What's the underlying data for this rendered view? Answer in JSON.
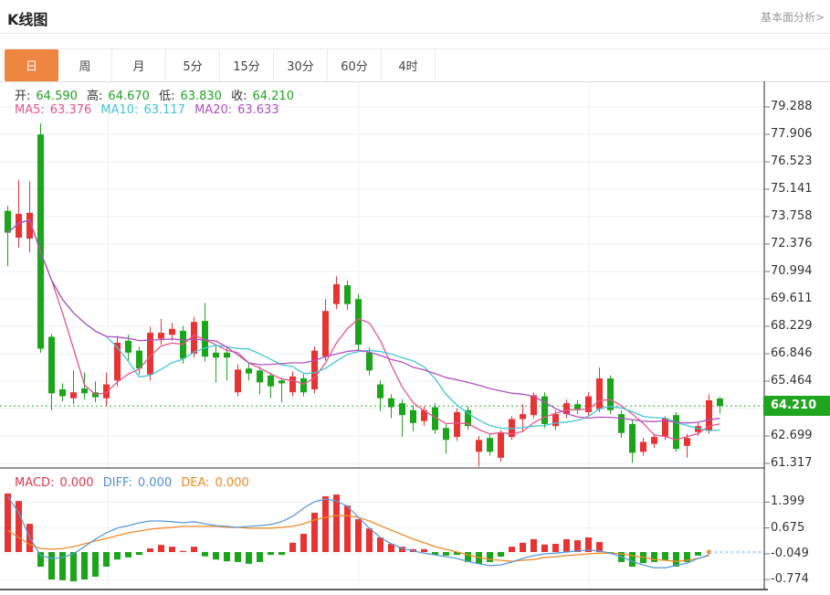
{
  "header": {
    "title": "K线图",
    "link": "基本面分析>"
  },
  "tabs": [
    {
      "label": "日",
      "selected": true
    },
    {
      "label": "周",
      "selected": false
    },
    {
      "label": "月",
      "selected": false
    },
    {
      "label": "5分",
      "selected": false
    },
    {
      "label": "15分",
      "selected": false
    },
    {
      "label": "30分",
      "selected": false
    },
    {
      "label": "60分",
      "selected": false
    },
    {
      "label": "4时",
      "selected": false
    }
  ],
  "legend": {
    "open_label": "开:",
    "open": "64.590",
    "high_label": "高:",
    "high": "64.670",
    "low_label": "低:",
    "low": "63.830",
    "close_label": "收:",
    "close": "64.210",
    "ma5_label": "MA5:",
    "ma5": "63.376",
    "ma10_label": "MA10:",
    "ma10": "63.117",
    "ma20_label": "MA20:",
    "ma20": "63.633",
    "macd_label": "MACD:",
    "macd": "0.000",
    "diff_label": "DIFF:",
    "diff": "0.000",
    "dea_label": "DEA:",
    "dea": "0.000"
  },
  "colors": {
    "up_candle": "#e83333",
    "down_candle": "#1ba51b",
    "badge_green": "#1fa51f",
    "dotted_price_line": "#2db52d",
    "ma5": "#e8558c",
    "ma10": "#45c5d8",
    "ma20": "#b052c0",
    "diff_line": "#5b9bd8",
    "dea_line": "#f08a28",
    "dashed_tail": "#a9c9e9",
    "macd_label": "#e0394f",
    "diff_label": "#4f8fd8",
    "dea_label": "#f08a1e",
    "tab_active": "#ee8540",
    "grid": "#eef1f4",
    "axis": "#2a2a2a",
    "ohlc_value": "#21a321"
  },
  "chart_data": {
    "type": "candlestick",
    "title": "K线图",
    "legend_position": "top-left",
    "grid": true,
    "price_axis_ticks": [
      79.288,
      77.906,
      76.523,
      75.141,
      73.758,
      72.376,
      70.994,
      69.611,
      68.229,
      66.846,
      65.464,
      62.699,
      61.317
    ],
    "current_price": 64.21,
    "price_axis_range": [
      61.08,
      80.58
    ],
    "macd_axis_ticks": [
      1.399,
      0.675,
      -0.049,
      -0.774
    ],
    "ma_periods": [
      5,
      10,
      20
    ],
    "candles": [
      [
        74.05,
        74.3,
        71.25,
        72.95
      ],
      [
        72.7,
        75.6,
        72.2,
        73.9
      ],
      [
        72.65,
        75.55,
        71.95,
        73.95
      ],
      [
        77.9,
        78.45,
        66.9,
        67.1
      ],
      [
        67.7,
        67.85,
        64.0,
        64.85
      ],
      [
        65.05,
        65.35,
        64.45,
        64.7
      ],
      [
        64.6,
        66.0,
        64.3,
        64.9
      ],
      [
        65.1,
        65.9,
        64.55,
        64.85
      ],
      [
        64.9,
        65.45,
        64.4,
        64.65
      ],
      [
        64.6,
        65.9,
        64.2,
        65.3
      ],
      [
        65.5,
        67.75,
        65.2,
        67.4
      ],
      [
        67.5,
        67.8,
        66.5,
        66.9
      ],
      [
        67.0,
        67.2,
        65.8,
        66.1
      ],
      [
        65.8,
        68.2,
        65.5,
        67.9
      ],
      [
        67.6,
        68.6,
        67.3,
        67.9
      ],
      [
        67.8,
        68.4,
        67.5,
        68.1
      ],
      [
        68.0,
        68.25,
        66.35,
        66.6
      ],
      [
        66.85,
        68.7,
        66.65,
        68.45
      ],
      [
        68.5,
        69.4,
        66.45,
        66.7
      ],
      [
        66.9,
        67.25,
        65.4,
        66.65
      ],
      [
        66.9,
        67.2,
        65.5,
        66.65
      ],
      [
        64.9,
        66.3,
        64.7,
        66.05
      ],
      [
        66.1,
        66.4,
        65.5,
        65.85
      ],
      [
        66.0,
        66.2,
        64.8,
        65.4
      ],
      [
        65.75,
        65.9,
        64.6,
        65.2
      ],
      [
        65.5,
        65.65,
        64.4,
        65.35
      ],
      [
        64.9,
        65.95,
        64.7,
        65.7
      ],
      [
        65.6,
        65.8,
        64.7,
        64.9
      ],
      [
        65.05,
        67.2,
        64.85,
        67.0
      ],
      [
        66.7,
        69.6,
        66.5,
        69.0
      ],
      [
        69.35,
        70.75,
        69.1,
        70.35
      ],
      [
        70.3,
        70.55,
        69.05,
        69.35
      ],
      [
        69.6,
        69.85,
        67.05,
        67.3
      ],
      [
        66.9,
        67.15,
        65.75,
        66.0
      ],
      [
        65.3,
        65.5,
        63.95,
        64.6
      ],
      [
        64.6,
        64.8,
        63.6,
        64.15
      ],
      [
        64.35,
        64.55,
        62.65,
        63.75
      ],
      [
        64.0,
        64.25,
        62.95,
        63.35
      ],
      [
        63.45,
        64.2,
        63.2,
        64.0
      ],
      [
        64.15,
        64.35,
        62.8,
        63.0
      ],
      [
        63.1,
        63.35,
        61.8,
        62.5
      ],
      [
        62.65,
        64.1,
        62.45,
        63.9
      ],
      [
        64.0,
        64.2,
        63.0,
        63.2
      ],
      [
        61.9,
        62.7,
        61.15,
        62.5
      ],
      [
        62.6,
        62.8,
        61.7,
        61.9
      ],
      [
        61.6,
        63.0,
        61.4,
        62.85
      ],
      [
        62.65,
        63.7,
        62.5,
        63.55
      ],
      [
        63.55,
        64.3,
        62.9,
        63.8
      ],
      [
        63.75,
        64.9,
        63.6,
        64.75
      ],
      [
        64.7,
        64.9,
        63.1,
        63.3
      ],
      [
        63.2,
        64.0,
        63.0,
        63.8
      ],
      [
        63.8,
        64.55,
        63.6,
        64.35
      ],
      [
        64.3,
        64.5,
        63.8,
        64.0
      ],
      [
        63.9,
        64.9,
        63.7,
        64.7
      ],
      [
        64.05,
        66.15,
        63.9,
        65.6
      ],
      [
        65.6,
        65.75,
        63.8,
        64.0
      ],
      [
        63.8,
        64.0,
        62.6,
        62.85
      ],
      [
        63.3,
        63.5,
        61.35,
        61.85
      ],
      [
        61.9,
        62.6,
        61.7,
        62.4
      ],
      [
        62.3,
        62.8,
        62.1,
        62.65
      ],
      [
        62.65,
        63.7,
        62.5,
        63.6
      ],
      [
        63.75,
        63.9,
        61.9,
        62.05
      ],
      [
        62.2,
        62.8,
        61.6,
        62.6
      ],
      [
        62.9,
        63.4,
        62.7,
        63.2
      ],
      [
        62.95,
        64.8,
        62.8,
        64.5
      ],
      [
        64.59,
        64.67,
        63.83,
        64.21
      ]
    ],
    "macd_hist": [
      1.64,
      1.43,
      0.79,
      -0.41,
      -0.77,
      -0.79,
      -0.82,
      -0.77,
      -0.69,
      -0.41,
      -0.21,
      -0.15,
      -0.08,
      0.1,
      0.2,
      0.15,
      0.03,
      0.15,
      -0.12,
      -0.21,
      -0.26,
      -0.28,
      -0.33,
      -0.28,
      -0.08,
      -0.08,
      0.26,
      0.51,
      1.1,
      1.56,
      1.61,
      1.3,
      0.92,
      0.66,
      0.41,
      0.23,
      0.15,
      0.08,
      0.08,
      -0.08,
      -0.1,
      -0.08,
      -0.28,
      -0.33,
      -0.28,
      -0.13,
      0.15,
      0.26,
      0.36,
      0.21,
      0.23,
      0.36,
      0.33,
      0.41,
      0.28,
      -0.05,
      -0.28,
      -0.41,
      -0.31,
      -0.28,
      -0.23,
      -0.41,
      -0.28,
      -0.1,
      0.0,
      0.0
    ],
    "diff_line": [
      1.56,
      1.1,
      0.41,
      -0.1,
      -0.18,
      -0.15,
      -0.05,
      0.15,
      0.36,
      0.54,
      0.67,
      0.74,
      0.82,
      0.87,
      0.87,
      0.85,
      0.82,
      0.85,
      0.79,
      0.74,
      0.72,
      0.69,
      0.72,
      0.74,
      0.77,
      0.85,
      1.0,
      1.23,
      1.41,
      1.48,
      1.43,
      1.28,
      0.97,
      0.67,
      0.41,
      0.23,
      0.1,
      0.03,
      -0.03,
      -0.08,
      -0.13,
      -0.18,
      -0.26,
      -0.33,
      -0.38,
      -0.36,
      -0.28,
      -0.18,
      -0.1,
      -0.05,
      -0.03,
      0.0,
      0.03,
      0.05,
      0.03,
      -0.03,
      -0.13,
      -0.26,
      -0.36,
      -0.44,
      -0.44,
      -0.38,
      -0.31,
      -0.18,
      -0.08,
      0.0
    ],
    "dea_line": [
      0.61,
      0.41,
      0.21,
      0.1,
      0.08,
      0.1,
      0.15,
      0.23,
      0.31,
      0.38,
      0.46,
      0.54,
      0.59,
      0.64,
      0.67,
      0.69,
      0.72,
      0.72,
      0.72,
      0.72,
      0.69,
      0.69,
      0.67,
      0.67,
      0.67,
      0.69,
      0.72,
      0.79,
      0.9,
      0.97,
      1.02,
      1.02,
      0.97,
      0.87,
      0.74,
      0.61,
      0.49,
      0.36,
      0.26,
      0.15,
      0.08,
      0.0,
      -0.08,
      -0.15,
      -0.21,
      -0.23,
      -0.26,
      -0.23,
      -0.21,
      -0.15,
      -0.13,
      -0.1,
      -0.08,
      -0.05,
      -0.03,
      -0.03,
      -0.05,
      -0.1,
      -0.15,
      -0.21,
      -0.23,
      -0.26,
      -0.23,
      -0.18,
      -0.1,
      0.0
    ]
  }
}
